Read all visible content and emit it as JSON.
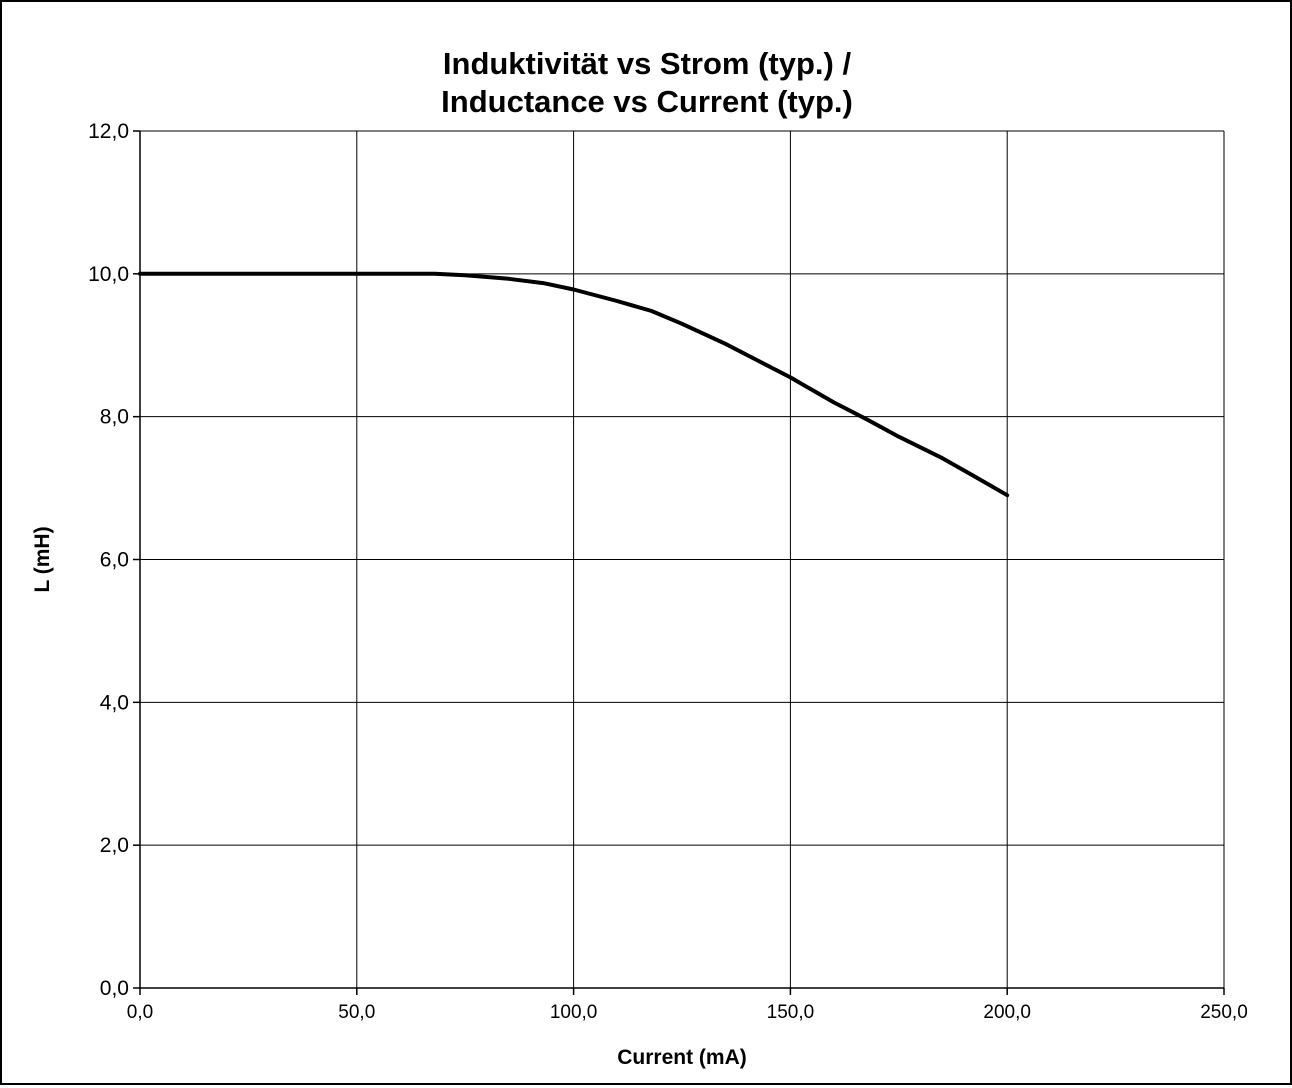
{
  "chart_data": {
    "type": "line",
    "title_lines": [
      "Induktivität vs Strom (typ.) /",
      "Inductance vs Current (typ.)"
    ],
    "xlabel": "Current (mA)",
    "ylabel": "L (mH)",
    "xlim": [
      0,
      250
    ],
    "ylim": [
      0,
      12
    ],
    "x_ticks": [
      0,
      50,
      100,
      150,
      200,
      250
    ],
    "y_ticks": [
      0,
      2,
      4,
      6,
      8,
      10,
      12
    ],
    "x_tick_labels": [
      "0,0",
      "50,0",
      "100,0",
      "150,0",
      "200,0",
      "250,0"
    ],
    "y_tick_labels": [
      "0,0",
      "2,0",
      "4,0",
      "6,0",
      "8,0",
      "10,0",
      "12,0"
    ],
    "grid": true,
    "legend": "none",
    "series": [
      {
        "color": "#000000",
        "x": [
          0,
          25,
          50,
          68,
          75,
          85,
          93,
          100,
          110,
          118,
          125,
          135,
          142,
          150,
          160,
          168,
          175,
          185,
          192,
          200
        ],
        "y": [
          10.0,
          10.0,
          10.0,
          10.0,
          9.98,
          9.93,
          9.87,
          9.78,
          9.62,
          9.48,
          9.3,
          9.02,
          8.8,
          8.55,
          8.2,
          7.95,
          7.72,
          7.42,
          7.18,
          6.9
        ]
      }
    ]
  }
}
